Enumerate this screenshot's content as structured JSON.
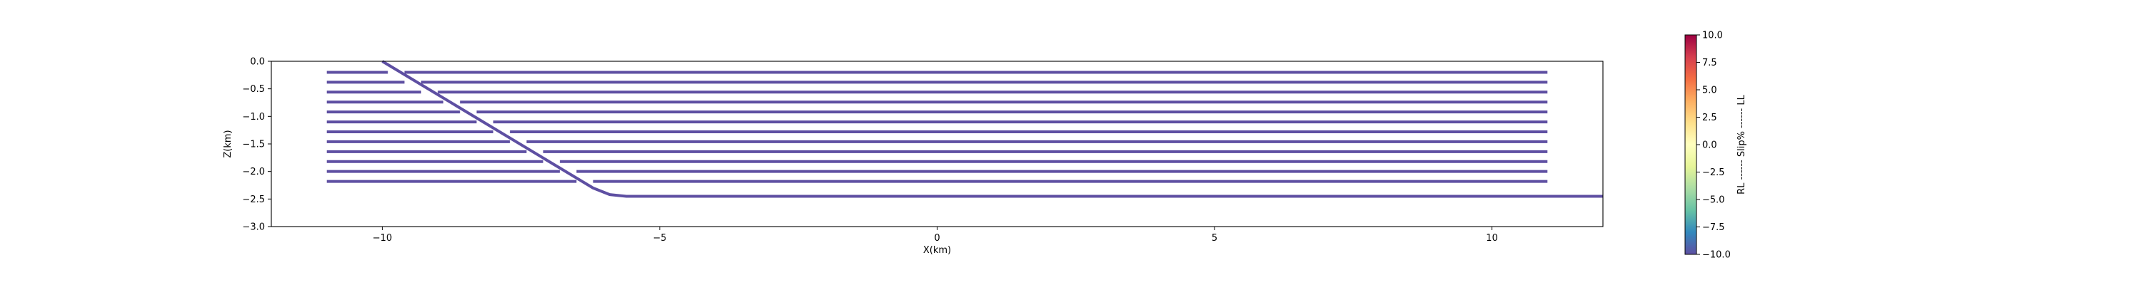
{
  "chart_data": {
    "type": "line",
    "title": "",
    "xlabel": "X(km)",
    "ylabel": "Z(km)",
    "xlim": [
      -12,
      12
    ],
    "ylim": [
      -3.0,
      0.0
    ],
    "grid": false,
    "x_ticks": [
      -10,
      -5,
      0,
      5,
      10
    ],
    "x_tick_labels": [
      "−10",
      "−5",
      "0",
      "5",
      "10"
    ],
    "y_ticks": [
      0.0,
      -0.5,
      -1.0,
      -1.5,
      -2.0,
      -2.5,
      -3.0
    ],
    "y_tick_labels": [
      "0.0",
      "−0.5",
      "−1.0",
      "−1.5",
      "−2.0",
      "−2.5",
      "−3.0"
    ],
    "line_color": "#5e4fa2",
    "fault": {
      "name": "",
      "x": [
        -10.0,
        -6.2,
        -5.9,
        -5.6,
        12.0
      ],
      "y": [
        0.0,
        -2.3,
        -2.42,
        -2.45,
        -2.45
      ]
    },
    "layers": [
      {
        "depth": -0.2,
        "segments": [
          [
            -11,
            -9.9
          ],
          [
            -9.6,
            11
          ]
        ]
      },
      {
        "depth": -0.38,
        "segments": [
          [
            -11,
            -9.6
          ],
          [
            -9.3,
            11
          ]
        ]
      },
      {
        "depth": -0.56,
        "segments": [
          [
            -11,
            -9.3
          ],
          [
            -9.0,
            11
          ]
        ]
      },
      {
        "depth": -0.74,
        "segments": [
          [
            -11,
            -8.9
          ],
          [
            -8.6,
            11
          ]
        ]
      },
      {
        "depth": -0.92,
        "segments": [
          [
            -11,
            -8.6
          ],
          [
            -8.3,
            11
          ]
        ]
      },
      {
        "depth": -1.1,
        "segments": [
          [
            -11,
            -8.3
          ],
          [
            -8.0,
            11
          ]
        ]
      },
      {
        "depth": -1.28,
        "segments": [
          [
            -11,
            -8.0
          ],
          [
            -7.7,
            11
          ]
        ]
      },
      {
        "depth": -1.46,
        "segments": [
          [
            -11,
            -7.7
          ],
          [
            -7.4,
            11
          ]
        ]
      },
      {
        "depth": -1.64,
        "segments": [
          [
            -11,
            -7.4
          ],
          [
            -7.1,
            11
          ]
        ]
      },
      {
        "depth": -1.82,
        "segments": [
          [
            -11,
            -7.1
          ],
          [
            -6.8,
            11
          ]
        ]
      },
      {
        "depth": -2.0,
        "segments": [
          [
            -11,
            -6.8
          ],
          [
            -6.5,
            11
          ]
        ]
      },
      {
        "depth": -2.18,
        "segments": [
          [
            -11,
            -6.5
          ],
          [
            -6.2,
            11
          ]
        ]
      }
    ],
    "colorbar": {
      "label": "RL ------ Slip% ------ LL",
      "range": [
        -10.0,
        10.0
      ],
      "ticks": [
        10.0,
        7.5,
        5.0,
        2.5,
        0.0,
        -2.5,
        -5.0,
        -7.5,
        -10.0
      ],
      "tick_labels": [
        "10.0",
        "7.5",
        "5.0",
        "2.5",
        "0.0",
        "−2.5",
        "−5.0",
        "−7.5",
        "−10.0"
      ],
      "colormap": "Spectral",
      "colors": [
        "#9e0142",
        "#d53e4f",
        "#f46d43",
        "#fdae61",
        "#fee08b",
        "#ffffbf",
        "#e6f598",
        "#abdda4",
        "#66c2a5",
        "#3288bd",
        "#5e4fa2"
      ]
    }
  }
}
